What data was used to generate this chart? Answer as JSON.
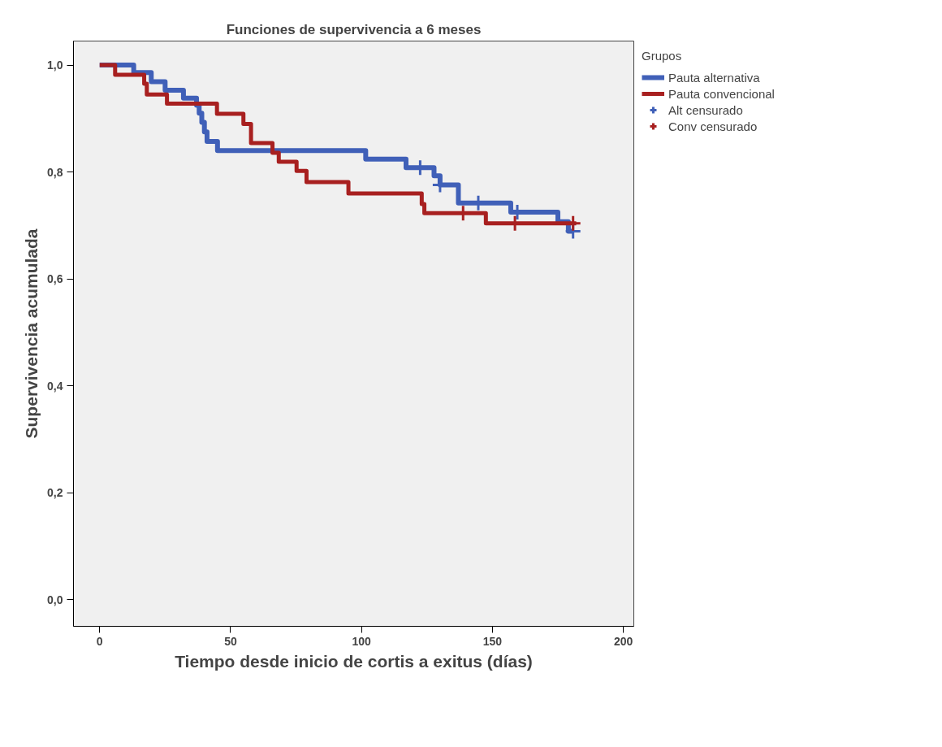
{
  "chart_data": {
    "type": "step",
    "title": "Funciones de supervivencia a 6 meses",
    "xlabel": "Tiempo desde inicio de cortis a exitus (días)",
    "ylabel": "Supervivencia acumulada",
    "legend_title": "Grupos",
    "legend": "right",
    "grid": false,
    "xlim": [
      -10,
      204
    ],
    "xticks": [
      0,
      50,
      100,
      150,
      200
    ],
    "ylim": [
      -0.05,
      1.045
    ],
    "yticks": [
      {
        "value": 0,
        "label": "0,0"
      },
      {
        "value": 0.2,
        "label": "0,2"
      },
      {
        "value": 0.4,
        "label": "0,4"
      },
      {
        "value": 0.6,
        "label": "0,6"
      },
      {
        "value": 0.8,
        "label": "0,8"
      },
      {
        "value": 1,
        "label": "1,0"
      }
    ],
    "series": [
      {
        "name": "Pauta alternativa",
        "color": "#4060b8",
        "x": [
          0,
          13,
          19.7,
          25,
          32,
          37,
          38,
          39,
          40,
          41,
          45,
          101.6,
          117,
          127.7,
          130,
          137,
          157,
          175,
          179,
          181
        ],
        "values": [
          1,
          0.986,
          0.969,
          0.953,
          0.938,
          0.925,
          0.91,
          0.893,
          0.875,
          0.857,
          0.84,
          0.824,
          0.808,
          0.793,
          0.776,
          0.742,
          0.725,
          0.707,
          0.689,
          0.689
        ]
      },
      {
        "name": "Pauta convencional",
        "color": "#a82020",
        "x": [
          0,
          5.9,
          17,
          18,
          25.7,
          44.8,
          54.9,
          57.8,
          66,
          68.4,
          75.2,
          79,
          95,
          123,
          124,
          147.5,
          182
        ],
        "values": [
          1,
          0.982,
          0.965,
          0.945,
          0.928,
          0.909,
          0.89,
          0.854,
          0.836,
          0.819,
          0.802,
          0.781,
          0.76,
          0.74,
          0.723,
          0.704,
          0.704
        ]
      },
      {
        "name": "Alt censurado",
        "type": "scatter",
        "marker": "cross",
        "color": "#4060b8",
        "x": [
          122.4,
          130,
          144.6,
          159.5,
          180.8
        ],
        "values": [
          0.808,
          0.776,
          0.742,
          0.725,
          0.689
        ]
      },
      {
        "name": "Conv censurado",
        "type": "scatter",
        "marker": "cross",
        "color": "#a82020",
        "x": [
          138.8,
          158.6,
          180.8
        ],
        "values": [
          0.723,
          0.704,
          0.704
        ]
      }
    ]
  }
}
